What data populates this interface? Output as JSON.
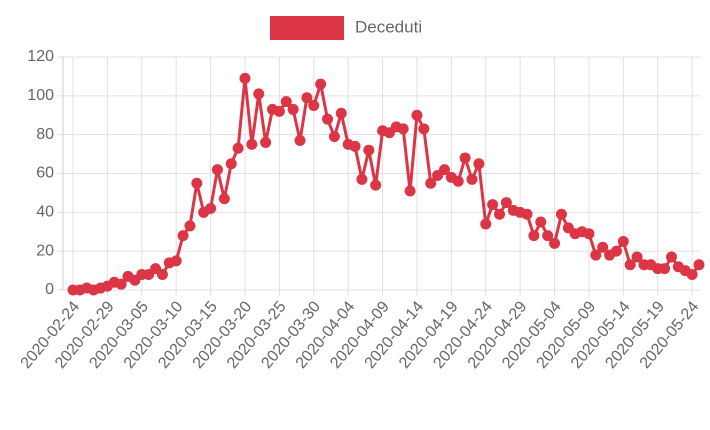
{
  "chart_data": {
    "type": "line",
    "categories": [
      "2020-02-24",
      null,
      null,
      null,
      null,
      "2020-02-29",
      null,
      null,
      null,
      null,
      "2020-03-05",
      null,
      null,
      null,
      null,
      "2020-03-10",
      null,
      null,
      null,
      null,
      "2020-03-15",
      null,
      null,
      null,
      null,
      "2020-03-20",
      null,
      null,
      null,
      null,
      "2020-03-25",
      null,
      null,
      null,
      null,
      "2020-03-30",
      null,
      null,
      null,
      null,
      "2020-04-04",
      null,
      null,
      null,
      null,
      "2020-04-09",
      null,
      null,
      null,
      null,
      "2020-04-14",
      null,
      null,
      null,
      null,
      "2020-04-19",
      null,
      null,
      null,
      null,
      "2020-04-24",
      null,
      null,
      null,
      null,
      "2020-04-29",
      null,
      null,
      null,
      null,
      "2020-05-04",
      null,
      null,
      null,
      null,
      "2020-05-09",
      null,
      null,
      null,
      null,
      "2020-05-14",
      null,
      null,
      null,
      null,
      "2020-05-19",
      null,
      null,
      null,
      null,
      "2020-05-24",
      null
    ],
    "series": [
      {
        "name": "Deceduti",
        "color": "#dc3545",
        "values": [
          0,
          0,
          1,
          0,
          1,
          2,
          4,
          3,
          7,
          5,
          8,
          8,
          11,
          8,
          14,
          15,
          28,
          33,
          55,
          40,
          42,
          62,
          47,
          65,
          73,
          109,
          75,
          101,
          76,
          93,
          92,
          97,
          93,
          77,
          99,
          95,
          106,
          88,
          79,
          91,
          75,
          74,
          57,
          72,
          54,
          82,
          81,
          84,
          83,
          51,
          90,
          83,
          55,
          59,
          62,
          58,
          56,
          68,
          57,
          65,
          34,
          44,
          39,
          45,
          41,
          40,
          39,
          28,
          35,
          28,
          24,
          39,
          32,
          29,
          30,
          29,
          18,
          22,
          18,
          20,
          25,
          13,
          17,
          13,
          13,
          11,
          11,
          17,
          12,
          10,
          8,
          13
        ]
      }
    ],
    "ylim": [
      0,
      120
    ],
    "yticks": [
      0,
      20,
      40,
      60,
      80,
      100,
      120
    ],
    "grid": true
  }
}
